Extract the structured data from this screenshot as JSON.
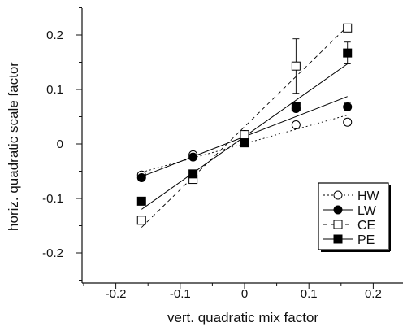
{
  "chart_data": {
    "type": "scatter",
    "xlabel": "vert. quadratic mix factor",
    "ylabel": "horiz. quadratic scale factor",
    "xlim": [
      -0.25,
      0.25
    ],
    "ylim": [
      -0.25,
      0.25
    ],
    "xticks": [
      -0.2,
      -0.1,
      0,
      0.1,
      0.2
    ],
    "yticks": [
      -0.2,
      -0.1,
      0,
      0.1,
      0.2
    ],
    "xtick_labels": [
      "-0.2",
      "-0.1",
      "0",
      "0.1",
      "0.2"
    ],
    "ytick_labels": [
      "-0.2",
      "-0.1",
      "0",
      "0.1",
      "0.2"
    ],
    "grid": false,
    "legend_position": "bottom-right",
    "series": [
      {
        "name": "HW",
        "marker": "circle-open",
        "line_style": "dotted",
        "points": [
          {
            "x": -0.16,
            "y": -0.057,
            "err": 0.005
          },
          {
            "x": -0.08,
            "y": -0.02,
            "err": 0.004
          },
          {
            "x": 0,
            "y": 0.017,
            "err": 0.003
          },
          {
            "x": 0.08,
            "y": 0.035,
            "err": 0.004
          },
          {
            "x": 0.16,
            "y": 0.04,
            "err": 0.006
          }
        ],
        "fit": [
          [
            -0.16,
            -0.052
          ],
          [
            0.16,
            0.053
          ]
        ]
      },
      {
        "name": "LW",
        "marker": "circle-filled",
        "line_style": "solid",
        "points": [
          {
            "x": -0.16,
            "y": -0.062,
            "err": 0.005
          },
          {
            "x": -0.08,
            "y": -0.024,
            "err": 0.004
          },
          {
            "x": 0,
            "y": 0.017,
            "err": 0.003
          },
          {
            "x": 0.08,
            "y": 0.065,
            "err": 0.004
          },
          {
            "x": 0.16,
            "y": 0.068,
            "err": 0.007
          }
        ],
        "fit": [
          [
            -0.16,
            -0.06
          ],
          [
            0.16,
            0.087
          ]
        ]
      },
      {
        "name": "CE",
        "marker": "square-open",
        "line_style": "dashed",
        "points": [
          {
            "x": -0.16,
            "y": -0.14,
            "err": 0.007
          },
          {
            "x": -0.08,
            "y": -0.065,
            "err": 0.005
          },
          {
            "x": 0,
            "y": 0.017,
            "err": 0.003
          },
          {
            "x": 0.08,
            "y": 0.143,
            "err": 0.05
          },
          {
            "x": 0.16,
            "y": 0.213,
            "err": 0.006
          }
        ],
        "fit": [
          [
            -0.16,
            -0.153
          ],
          [
            0.16,
            0.216
          ]
        ]
      },
      {
        "name": "PE",
        "marker": "square-filled",
        "line_style": "solid",
        "points": [
          {
            "x": -0.16,
            "y": -0.105,
            "err": 0.005
          },
          {
            "x": -0.08,
            "y": -0.055,
            "err": 0.005
          },
          {
            "x": 0,
            "y": 0.002,
            "err": 0.003
          },
          {
            "x": 0.08,
            "y": 0.068,
            "err": 0.006
          },
          {
            "x": 0.16,
            "y": 0.167,
            "err": 0.02
          }
        ],
        "fit": [
          [
            -0.16,
            -0.12
          ],
          [
            0.16,
            0.147
          ]
        ]
      }
    ]
  }
}
